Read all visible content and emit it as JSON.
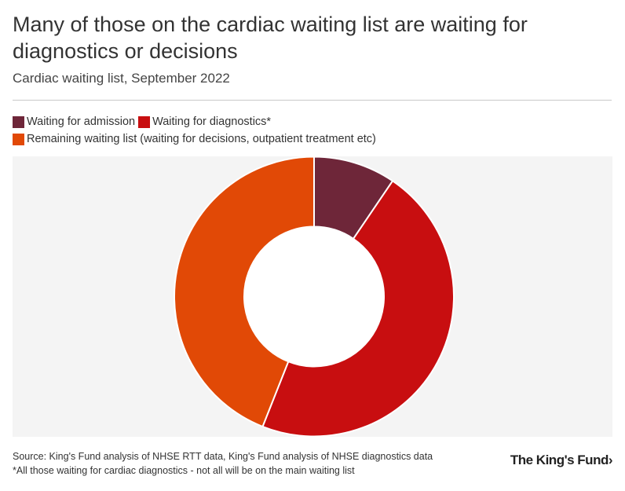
{
  "header": {
    "title": "Many of those on the cardiac waiting list are waiting for diagnostics or decisions",
    "subtitle": "Cardiac waiting list, September 2022"
  },
  "legend": {
    "items": [
      {
        "label": "Waiting for admission",
        "color": "#6e2639"
      },
      {
        "label": "Waiting for diagnostics*",
        "color": "#c80e10"
      },
      {
        "label": "Remaining waiting list (waiting for decisions, outpatient treatment etc)",
        "color": "#e14906"
      }
    ]
  },
  "footer": {
    "source": "Source: King's Fund analysis of NHSE RTT data, King's Fund analysis of NHSE diagnostics data",
    "note": "*All those waiting for cardiac diagnostics - not all will be on the main waiting list",
    "logo": "The King's Fund›"
  },
  "chart_data": {
    "type": "pie",
    "variant": "donut",
    "categories": [
      "Waiting for admission",
      "Waiting for diagnostics*",
      "Remaining waiting list (waiting for decisions, outpatient treatment etc)"
    ],
    "values": [
      9.5,
      46.5,
      44.0
    ],
    "colors": [
      "#6e2639",
      "#c80e10",
      "#e14906"
    ],
    "legend_position": "top-left",
    "background": "#f4f4f4"
  }
}
